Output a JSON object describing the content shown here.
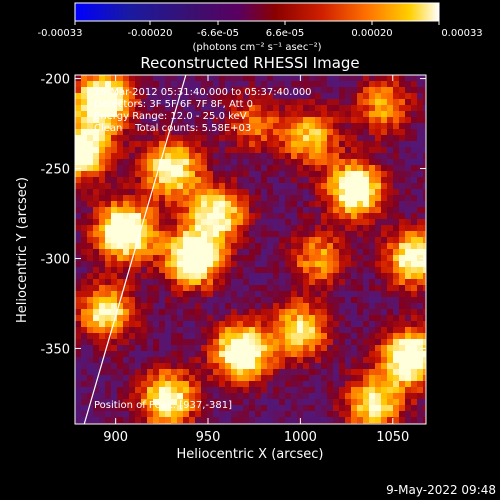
{
  "colorbar": {
    "ticks": [
      "-0.00033",
      "-0.00020",
      "-6.6e-05",
      "6.6e-05",
      "0.00020",
      "0.00033"
    ],
    "unit_label": "(photons cm⁻² s⁻¹ asec⁻²)",
    "range": [
      -0.00033,
      0.00033
    ],
    "colors": [
      "#0000ff",
      "#2a1a6e",
      "#55008a",
      "#8a0000",
      "#cc1a00",
      "#ff6a00",
      "#ffc000",
      "#ffff80",
      "#ffffff"
    ]
  },
  "chart_data": {
    "type": "heatmap",
    "title": "Reconstructed RHESSI Image",
    "xlabel": "Heliocentric X (arcsec)",
    "ylabel": "Heliocentric Y (arcsec)",
    "xlim": [
      878,
      1068
    ],
    "ylim": [
      -392,
      -198
    ],
    "x_ticks": [
      900,
      950,
      1000,
      1050
    ],
    "y_ticks": [
      -200,
      -250,
      -300,
      -350
    ],
    "x_tick_labels": [
      "900",
      "950",
      "1000",
      "1050"
    ],
    "y_tick_labels": [
      "-200",
      "-250",
      "-300",
      "-350"
    ],
    "limb_line": [
      [
        883,
        -392
      ],
      [
        938,
        -198
      ]
    ],
    "sources": [
      {
        "x": 893,
        "y": -212,
        "intensity": 0.95
      },
      {
        "x": 882,
        "y": -240,
        "intensity": 0.85
      },
      {
        "x": 905,
        "y": -285,
        "intensity": 1.0
      },
      {
        "x": 930,
        "y": -250,
        "intensity": 0.8
      },
      {
        "x": 942,
        "y": -300,
        "intensity": 0.95
      },
      {
        "x": 955,
        "y": -275,
        "intensity": 0.75
      },
      {
        "x": 895,
        "y": -330,
        "intensity": 0.7
      },
      {
        "x": 968,
        "y": -352,
        "intensity": 0.95
      },
      {
        "x": 928,
        "y": -378,
        "intensity": 0.8
      },
      {
        "x": 1030,
        "y": -262,
        "intensity": 0.9
      },
      {
        "x": 1005,
        "y": -233,
        "intensity": 0.6
      },
      {
        "x": 1000,
        "y": -340,
        "intensity": 0.65
      },
      {
        "x": 1060,
        "y": -355,
        "intensity": 0.95
      },
      {
        "x": 1062,
        "y": -300,
        "intensity": 0.8
      },
      {
        "x": 1040,
        "y": -380,
        "intensity": 0.7
      },
      {
        "x": 1010,
        "y": -300,
        "intensity": 0.5
      },
      {
        "x": 975,
        "y": -225,
        "intensity": 0.4
      },
      {
        "x": 1045,
        "y": -215,
        "intensity": 0.5
      }
    ]
  },
  "annotations": {
    "time_range": "15-Mar-2012 05:31:40.000 to 05:37:40.000",
    "detectors": "Detectors: 3F 5F 6F 7F 8F, Att 0",
    "energy": "Energy Range: 12.0 - 25.0 keV",
    "clean": "Clean    Total counts: 5.58E+03",
    "position": "Position of Peak: [937,-381]"
  },
  "footer": {
    "date": "9-May-2022 09:48"
  }
}
